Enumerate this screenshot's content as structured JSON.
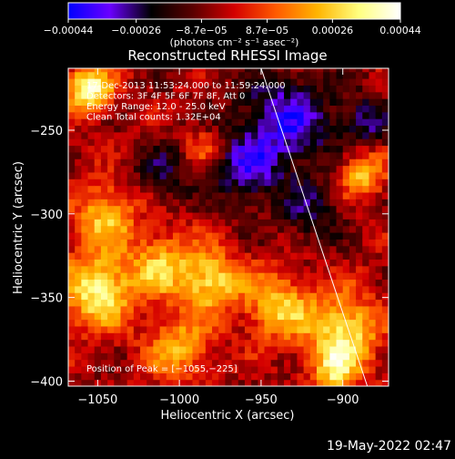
{
  "chart_data": {
    "type": "heatmap",
    "title": "Reconstructed RHESSI Image",
    "xlabel": "Heliocentric X (arcsec)",
    "ylabel": "Heliocentric Y (arcsec)",
    "xlim": [
      -1068,
      -872
    ],
    "ylim": [
      -403,
      -213
    ],
    "x_ticks": [
      -1050,
      -1000,
      -950,
      -900
    ],
    "x_tick_labels": [
      "−1050",
      "−1000",
      "−950",
      "−900"
    ],
    "y_ticks": [
      -250,
      -300,
      -350,
      -400
    ],
    "y_tick_labels": [
      "−250",
      "−300",
      "−350",
      "−400"
    ],
    "colorbar": {
      "range": [
        -0.00044,
        0.00044
      ],
      "tick_values": [
        -0.00044,
        -0.00026,
        -8.7e-05,
        8.7e-05,
        0.00026,
        0.00044
      ],
      "tick_labels": [
        "−0.00044",
        "−0.00026",
        "−8.7e−05",
        "8.7e−05",
        "0.00026",
        "0.00044"
      ],
      "unit_label": "(photons cm⁻² s⁻¹ asec⁻²)",
      "colors": [
        "#0000ff",
        "#6a00ff",
        "#000000",
        "#5a0000",
        "#d40000",
        "#ff5a00",
        "#ffb400",
        "#ffff80",
        "#ffffff"
      ]
    },
    "annotations": [
      "17-Dec-2013 11:53:24.000 to 11:59:24.000",
      "Detectors: 3F 4F 5F 6F 7F 8F, Att 0",
      "Energy Range: 12.0 - 25.0 keV",
      "Clean     Total counts: 1.32E+04"
    ],
    "peak_label": "Position of Peak = [−1055,−225]",
    "peak_position": [
      -1055,
      -225
    ],
    "limb_line": [
      [
        -950,
        -213
      ],
      [
        -885,
        -403
      ]
    ],
    "hot_regions": [
      {
        "center": [
          -1055,
          -225
        ],
        "radius": 14,
        "value": 0.00044
      },
      {
        "center": [
          -1045,
          -300
        ],
        "radius": 18,
        "value": 0.0003
      },
      {
        "center": [
          -1050,
          -345
        ],
        "radius": 22,
        "value": 0.0004
      },
      {
        "center": [
          -1010,
          -330
        ],
        "radius": 20,
        "value": 0.00028
      },
      {
        "center": [
          -980,
          -340
        ],
        "radius": 18,
        "value": 0.00034
      },
      {
        "center": [
          -1000,
          -380
        ],
        "radius": 20,
        "value": 0.00026
      },
      {
        "center": [
          -940,
          -355
        ],
        "radius": 20,
        "value": 0.0003
      },
      {
        "center": [
          -900,
          -370
        ],
        "radius": 22,
        "value": 0.00038
      },
      {
        "center": [
          -888,
          -275
        ],
        "radius": 14,
        "value": 0.0003
      },
      {
        "center": [
          -985,
          -260
        ],
        "radius": 12,
        "value": 0.00015
      },
      {
        "center": [
          -905,
          -395
        ],
        "radius": 14,
        "value": 0.00028
      }
    ],
    "cold_regions": [
      {
        "center": [
          -935,
          -245
        ],
        "radius": 30,
        "value": -0.0003
      },
      {
        "center": [
          -960,
          -275
        ],
        "radius": 20,
        "value": -0.00022
      },
      {
        "center": [
          -1010,
          -275
        ],
        "radius": 18,
        "value": -0.00016
      },
      {
        "center": [
          -885,
          -245
        ],
        "radius": 16,
        "value": -0.0002
      },
      {
        "center": [
          -920,
          -300
        ],
        "radius": 18,
        "value": -0.00018
      }
    ]
  },
  "timestamp": "19-May-2022 02:47"
}
